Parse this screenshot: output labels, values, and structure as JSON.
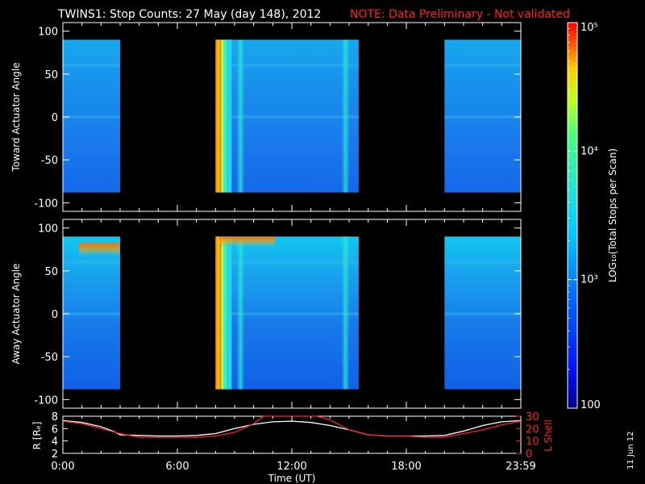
{
  "header": {
    "title": "TWINS1: Stop Counts: 27 May (day 148), 2012",
    "note": "NOTE: Data Preliminary - Not validated",
    "stamp": "11 Jun 12"
  },
  "colors": {
    "background": "#000000",
    "note": "#ff2020",
    "r_line": "#ffffff",
    "l_line": "#ff2020"
  },
  "chart_data": [
    {
      "type": "heatmap",
      "ylabel": "Toward Actuator Angle",
      "ylim": [
        -110,
        110
      ],
      "yticks": [
        100,
        50,
        0,
        -50,
        -100
      ],
      "xlim_hours": [
        0,
        24
      ],
      "data_extent_deg": [
        -88,
        90
      ],
      "data_blocks": [
        {
          "start": "0:00",
          "end": "3:00"
        },
        {
          "start": "8:00",
          "end": "15:30"
        },
        {
          "start": "20:00",
          "end": "24:00"
        }
      ]
    },
    {
      "type": "heatmap",
      "ylabel": "Away Actuator Angle",
      "ylim": [
        -110,
        110
      ],
      "yticks": [
        100,
        50,
        0,
        -50,
        -100
      ],
      "xlim_hours": [
        0,
        24
      ],
      "data_extent_deg": [
        -88,
        90
      ],
      "data_blocks": [
        {
          "start": "0:00",
          "end": "3:00"
        },
        {
          "start": "8:00",
          "end": "15:30"
        },
        {
          "start": "20:00",
          "end": "24:00"
        }
      ]
    },
    {
      "type": "line",
      "xlabel": "Time (UT)",
      "xticks": [
        "0:00",
        "6:00",
        "12:00",
        "18:00",
        "23:59"
      ],
      "ylabel_left": "R [Rₑ]",
      "ylabel_right": "L Shell",
      "left_ylim": [
        2,
        8
      ],
      "left_yticks": [
        2,
        4,
        6,
        8
      ],
      "right_ylim": [
        0,
        30
      ],
      "right_yticks": [
        0,
        10,
        20,
        30
      ],
      "series": [
        {
          "axis": "left",
          "color": "#ffffff",
          "x": [
            0,
            1,
            2,
            2.7,
            3,
            4,
            5,
            6,
            7,
            8,
            9,
            10,
            11,
            12,
            13,
            14,
            15,
            16,
            17,
            18,
            19,
            20,
            21,
            22,
            23,
            24
          ],
          "values": [
            7.3,
            7.0,
            6.3,
            5.5,
            5.0,
            4.9,
            4.8,
            4.8,
            4.9,
            5.2,
            6.0,
            6.7,
            7.1,
            7.2,
            7.0,
            6.5,
            5.8,
            5.0,
            4.8,
            4.8,
            4.8,
            4.9,
            5.6,
            6.5,
            7.1,
            7.3
          ]
        },
        {
          "axis": "right",
          "color": "#ff2020",
          "x": [
            0,
            1,
            2,
            3,
            4,
            5,
            6,
            7,
            8,
            9,
            10,
            10.5,
            13.3,
            14,
            15,
            16,
            17,
            18,
            19,
            20,
            21,
            22,
            23,
            24
          ],
          "values": [
            26,
            24,
            20,
            16,
            13,
            13,
            13,
            13,
            14,
            17,
            24,
            31,
            31,
            27,
            19,
            15,
            14,
            14,
            13,
            13,
            16,
            19,
            23,
            26
          ]
        }
      ]
    },
    {
      "type": "colorbar",
      "label": "LOG₁₀(Total Stops per Scan)",
      "ticks": [
        "10⁵",
        "10⁴",
        "10³",
        "100"
      ],
      "tick_values": [
        100000,
        10000,
        1000,
        100
      ],
      "scale": "log",
      "range": [
        100,
        100000
      ]
    }
  ]
}
